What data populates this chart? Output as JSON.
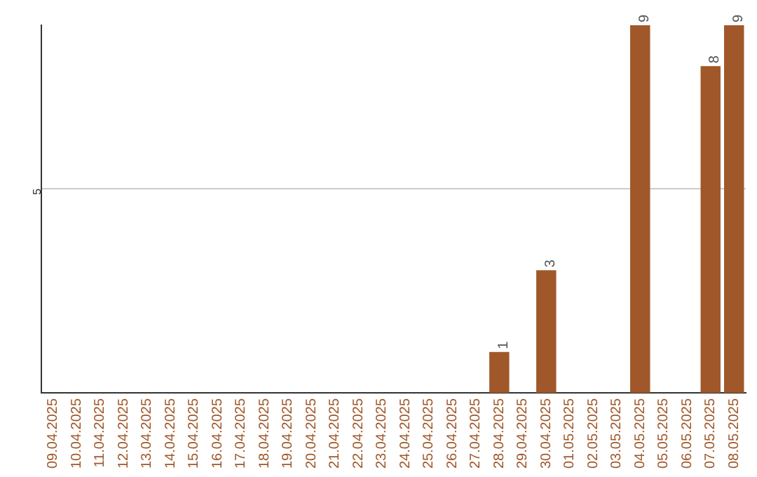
{
  "chart_data": {
    "type": "bar",
    "categories": [
      "09.04.2025",
      "10.04.2025",
      "11.04.2025",
      "12.04.2025",
      "13.04.2025",
      "14.04.2025",
      "15.04.2025",
      "16.04.2025",
      "17.04.2025",
      "18.04.2025",
      "19.04.2025",
      "20.04.2025",
      "21.04.2025",
      "22.04.2025",
      "23.04.2025",
      "24.04.2025",
      "25.04.2025",
      "26.04.2025",
      "27.04.2025",
      "28.04.2025",
      "29.04.2025",
      "30.04.2025",
      "01.05.2025",
      "02.05.2025",
      "03.05.2025",
      "04.05.2025",
      "05.05.2025",
      "06.05.2025",
      "07.05.2025",
      "08.05.2025"
    ],
    "values": [
      null,
      null,
      null,
      null,
      null,
      null,
      null,
      null,
      null,
      null,
      null,
      null,
      null,
      null,
      null,
      null,
      null,
      null,
      null,
      1,
      null,
      3,
      null,
      null,
      null,
      9,
      null,
      null,
      8,
      9
    ],
    "data_labels": true,
    "color": "#a0582a",
    "ylim": [
      0,
      9
    ],
    "yticks": [
      5
    ],
    "grid": "y"
  }
}
